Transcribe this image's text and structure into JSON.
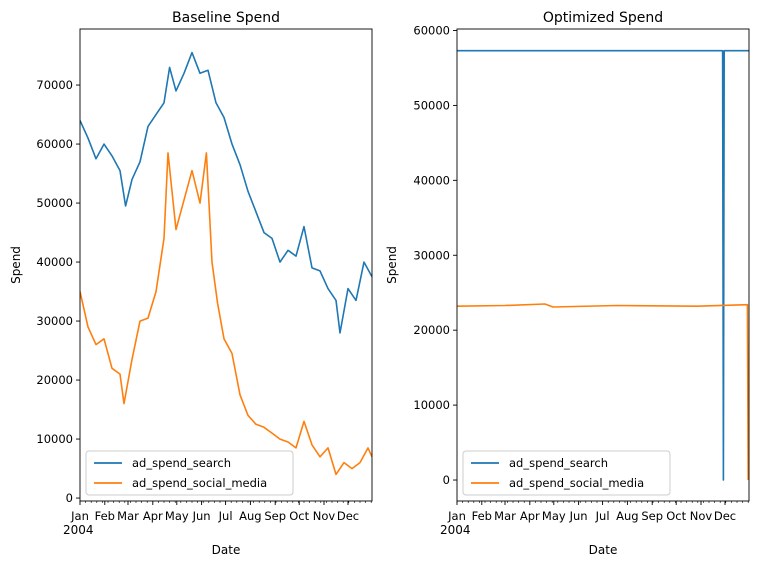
{
  "chart_data": [
    {
      "type": "line",
      "title": "Baseline Spend",
      "xlabel": "Date",
      "ylabel": "Spend",
      "ylim": [
        -500,
        79500
      ],
      "yticks": [
        0,
        10000,
        20000,
        30000,
        40000,
        50000,
        60000,
        70000
      ],
      "xticks": [
        "Jan",
        "Feb",
        "Mar",
        "Apr",
        "May",
        "Jun",
        "Jul",
        "Aug",
        "Sep",
        "Oct",
        "Nov",
        "Dec"
      ],
      "xtick_year": "2004",
      "legend": "lower-left",
      "series": [
        {
          "name": "ad_spend_search",
          "color": "#1f77b4",
          "values": [
            [
              0,
              64000
            ],
            [
              10,
              61000
            ],
            [
              20,
              57500
            ],
            [
              30,
              60000
            ],
            [
              40,
              58000
            ],
            [
              50,
              55500
            ],
            [
              57,
              49500
            ],
            [
              65,
              54000
            ],
            [
              75,
              57000
            ],
            [
              85,
              63000
            ],
            [
              95,
              65000
            ],
            [
              105,
              67000
            ],
            [
              112,
              73000
            ],
            [
              120,
              69000
            ],
            [
              130,
              72000
            ],
            [
              140,
              75500
            ],
            [
              150,
              72000
            ],
            [
              160,
              72500
            ],
            [
              170,
              67000
            ],
            [
              180,
              64500
            ],
            [
              190,
              60000
            ],
            [
              200,
              56500
            ],
            [
              210,
              52000
            ],
            [
              220,
              48500
            ],
            [
              230,
              45000
            ],
            [
              240,
              44000
            ],
            [
              250,
              40000
            ],
            [
              260,
              42000
            ],
            [
              270,
              41000
            ],
            [
              280,
              46000
            ],
            [
              290,
              39000
            ],
            [
              300,
              38500
            ],
            [
              310,
              35500
            ],
            [
              320,
              33500
            ],
            [
              325,
              28000
            ],
            [
              335,
              35500
            ],
            [
              345,
              33500
            ],
            [
              355,
              40000
            ],
            [
              365,
              37500
            ]
          ]
        },
        {
          "name": "ad_spend_social_media",
          "color": "#ff7f0e",
          "values": [
            [
              0,
              35000
            ],
            [
              10,
              29000
            ],
            [
              20,
              26000
            ],
            [
              30,
              27000
            ],
            [
              40,
              22000
            ],
            [
              50,
              21000
            ],
            [
              55,
              16000
            ],
            [
              65,
              23500
            ],
            [
              75,
              30000
            ],
            [
              85,
              30500
            ],
            [
              95,
              35000
            ],
            [
              105,
              44000
            ],
            [
              110,
              58500
            ],
            [
              120,
              45500
            ],
            [
              130,
              50500
            ],
            [
              140,
              55500
            ],
            [
              150,
              50000
            ],
            [
              158,
              58500
            ],
            [
              165,
              40000
            ],
            [
              172,
              33000
            ],
            [
              180,
              27000
            ],
            [
              190,
              24500
            ],
            [
              200,
              17500
            ],
            [
              210,
              14000
            ],
            [
              220,
              12500
            ],
            [
              230,
              12000
            ],
            [
              240,
              11000
            ],
            [
              250,
              10000
            ],
            [
              260,
              9500
            ],
            [
              270,
              8500
            ],
            [
              280,
              13000
            ],
            [
              290,
              9000
            ],
            [
              300,
              7000
            ],
            [
              310,
              8500
            ],
            [
              320,
              4000
            ],
            [
              330,
              6000
            ],
            [
              340,
              5000
            ],
            [
              350,
              6000
            ],
            [
              360,
              8500
            ],
            [
              365,
              7000
            ]
          ]
        }
      ]
    },
    {
      "type": "line",
      "title": "Optimized Spend",
      "xlabel": "Date",
      "ylabel": "Spend",
      "ylim": [
        -2800,
        60200
      ],
      "yticks": [
        0,
        10000,
        20000,
        30000,
        40000,
        50000,
        60000
      ],
      "xticks": [
        "Jan",
        "Feb",
        "Mar",
        "Apr",
        "May",
        "Jun",
        "Jul",
        "Aug",
        "Sep",
        "Oct",
        "Nov",
        "Dec"
      ],
      "xtick_year": "2004",
      "legend": "lower-left",
      "series": [
        {
          "name": "ad_spend_search",
          "color": "#1f77b4",
          "values": [
            [
              0,
              57300
            ],
            [
              332,
              57300
            ],
            [
              333,
              0
            ],
            [
              334,
              57300
            ],
            [
              365,
              57300
            ]
          ]
        },
        {
          "name": "ad_spend_social_media",
          "color": "#ff7f0e",
          "values": [
            [
              0,
              23200
            ],
            [
              60,
              23300
            ],
            [
              110,
              23500
            ],
            [
              120,
              23100
            ],
            [
              200,
              23300
            ],
            [
              300,
              23200
            ],
            [
              363,
              23400
            ],
            [
              364,
              0
            ]
          ]
        }
      ]
    }
  ]
}
